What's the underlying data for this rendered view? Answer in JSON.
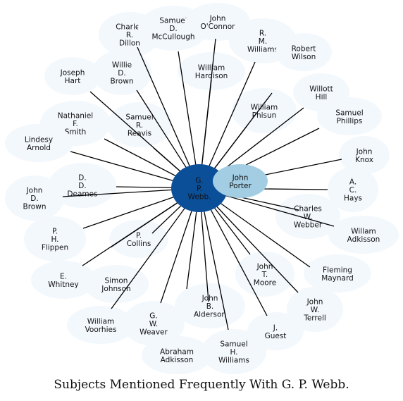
{
  "caption": "Subjects Mentioned Frequently With G. P. Webb.",
  "colors": {
    "center": "#0b4f99",
    "secondary": "#a3cde3",
    "node": "#f3f8fd",
    "edge": "#000000"
  },
  "center": {
    "lines": [
      "G.",
      "P.",
      "Webb."
    ]
  },
  "secondary": {
    "lines": [
      "John",
      "Porter"
    ]
  },
  "nodes": [
    {
      "lines": [
        "Charles",
        "R.",
        "Dillon"
      ]
    },
    {
      "lines": [
        "Samuel",
        "D.",
        "McCullough"
      ]
    },
    {
      "lines": [
        "John",
        "O'Connor"
      ]
    },
    {
      "lines": [
        "R.",
        "M.",
        "Williams"
      ]
    },
    {
      "lines": [
        "Robert",
        "Wilson"
      ]
    },
    {
      "lines": [
        "Joseph",
        "Hart"
      ]
    },
    {
      "lines": [
        "Willie",
        "D.",
        "Brown"
      ]
    },
    {
      "lines": [
        "William",
        "Hardison"
      ]
    },
    {
      "lines": [
        "Willott",
        "Hill"
      ]
    },
    {
      "lines": [
        "William",
        "Phisun"
      ]
    },
    {
      "lines": [
        "Nathaniel",
        "F.",
        "Smith"
      ]
    },
    {
      "lines": [
        "Samuel",
        "R.",
        "Reavis"
      ]
    },
    {
      "lines": [
        "Samuel",
        "Phillips"
      ]
    },
    {
      "lines": [
        "Lindesy",
        "Arnold"
      ]
    },
    {
      "lines": [
        "John",
        "Knox"
      ]
    },
    {
      "lines": [
        "D.",
        "D.",
        "Deames"
      ]
    },
    {
      "lines": [
        "John",
        "D.",
        "Brown"
      ]
    },
    {
      "lines": [
        "A.",
        "C.",
        "Hays"
      ]
    },
    {
      "lines": [
        "Charles",
        "W.",
        "Webber"
      ]
    },
    {
      "lines": [
        "Willam",
        "Adkisson"
      ]
    },
    {
      "lines": [
        "P.",
        "H.",
        "Flippen"
      ]
    },
    {
      "lines": [
        "P.",
        "Collins"
      ]
    },
    {
      "lines": [
        "E.",
        "Whitney"
      ]
    },
    {
      "lines": [
        "Simon",
        "Johnson"
      ]
    },
    {
      "lines": [
        "John",
        "T.",
        "Moore"
      ]
    },
    {
      "lines": [
        "Fleming",
        "Maynard"
      ]
    },
    {
      "lines": [
        "John",
        "B.",
        "Alderson"
      ]
    },
    {
      "lines": [
        "John",
        "W.",
        "Terrell"
      ]
    },
    {
      "lines": [
        "William",
        "Voorhies"
      ]
    },
    {
      "lines": [
        "G.",
        "W.",
        "Weaver"
      ]
    },
    {
      "lines": [
        "J.",
        "Guest"
      ]
    },
    {
      "lines": [
        "Abraham",
        "Adkisson"
      ]
    },
    {
      "lines": [
        "Samuel",
        "H.",
        "Williams"
      ]
    }
  ]
}
